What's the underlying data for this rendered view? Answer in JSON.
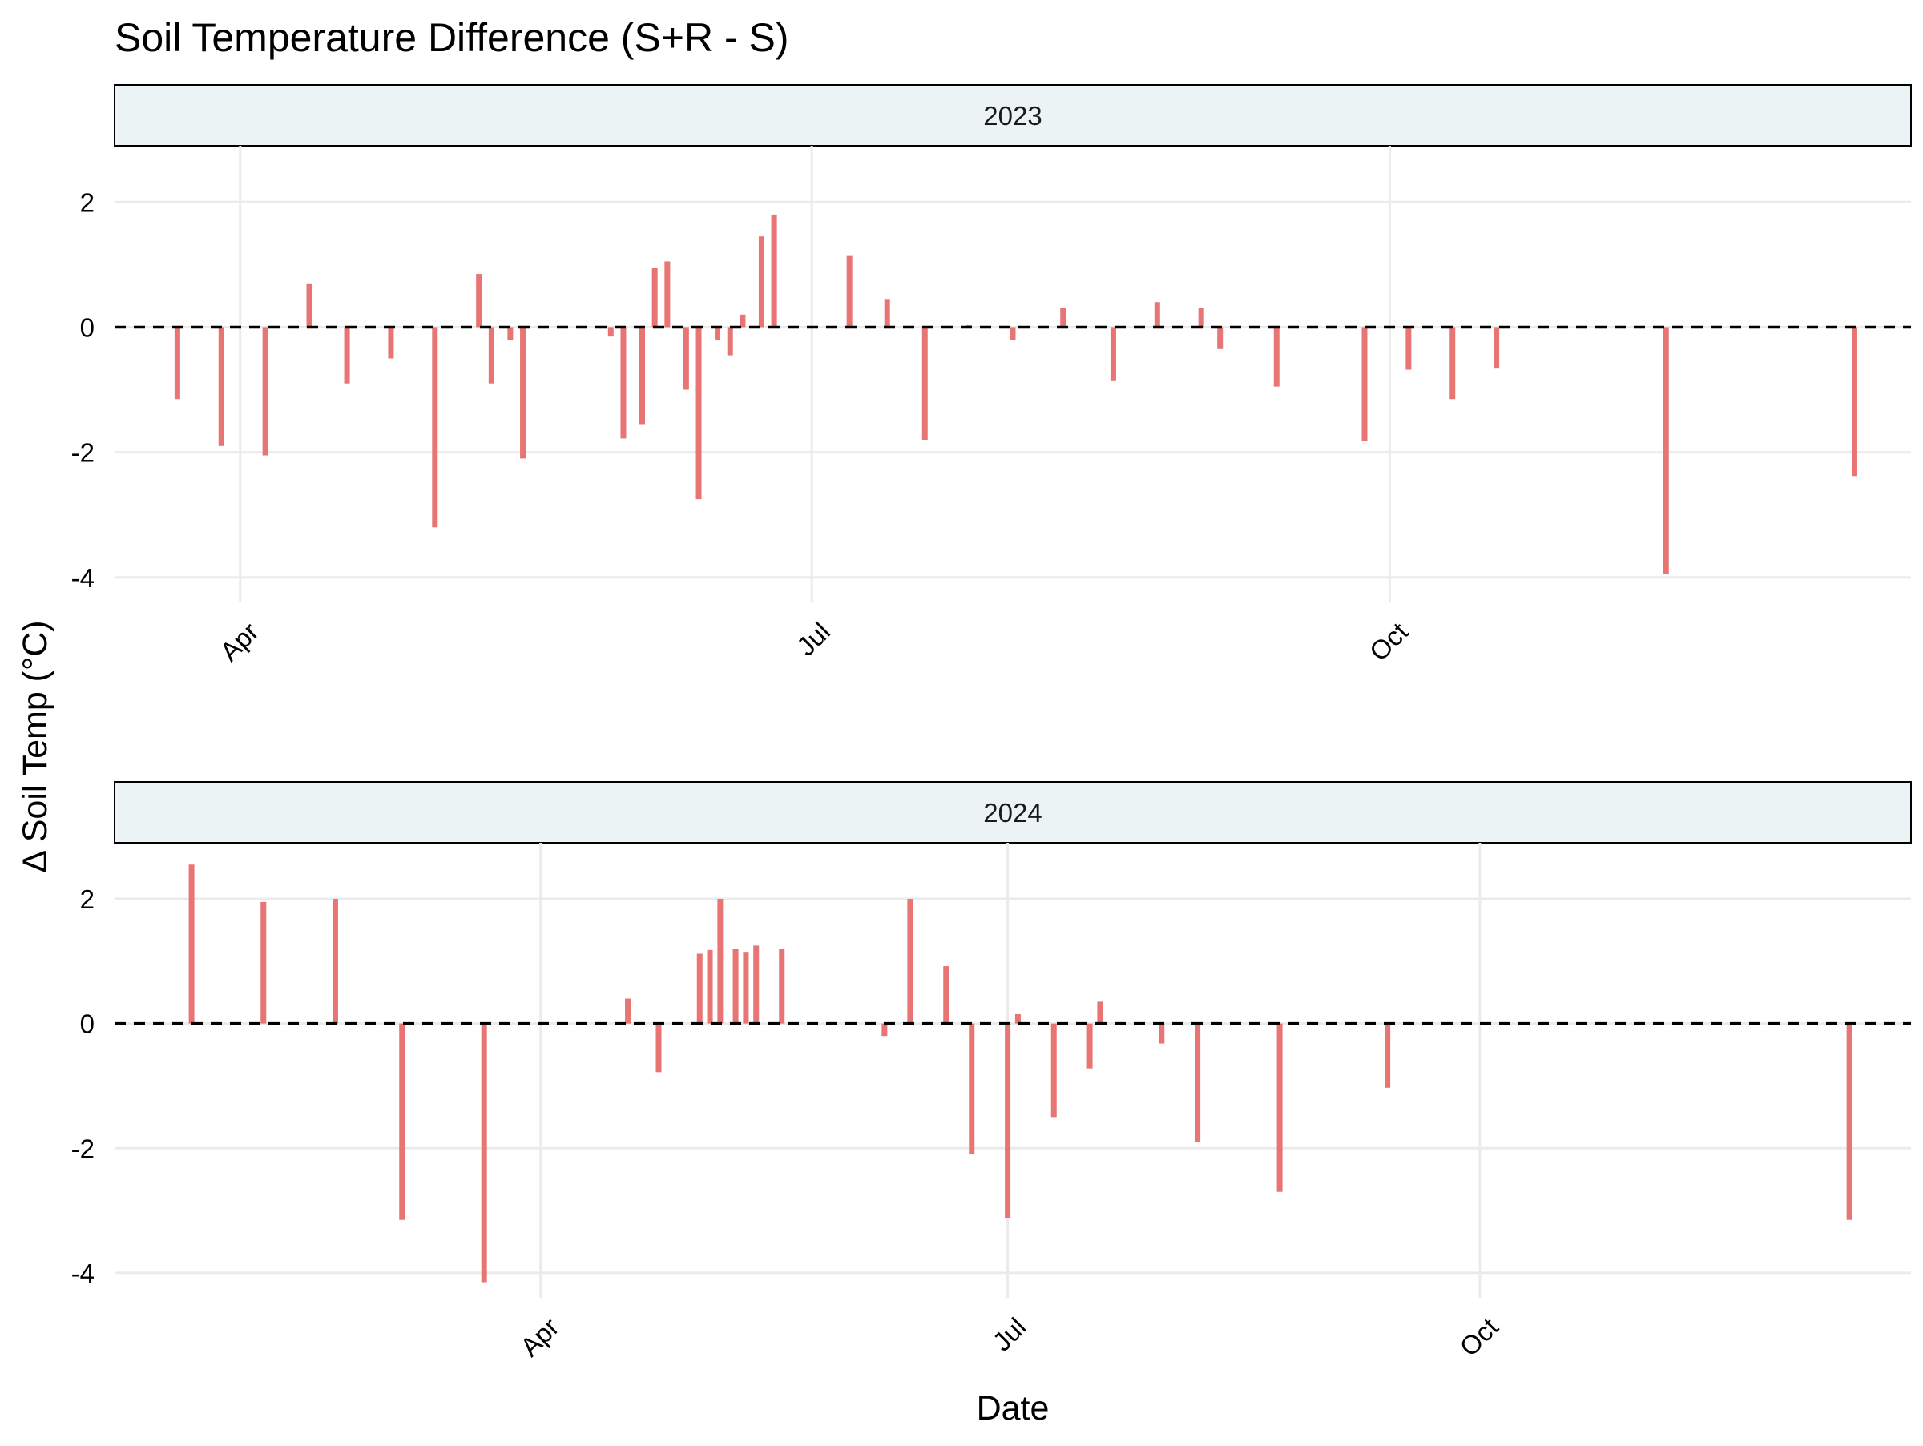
{
  "chart_data": {
    "type": "bar",
    "title": "Soil Temperature Difference (S+R - S)",
    "xlabel": "Date",
    "ylabel": "Δ Soil Temp (°C)",
    "ylim": [
      -4.4,
      2.9
    ],
    "y_ticks": [
      -4,
      -2,
      0,
      2
    ],
    "grid": true,
    "reference_line": 0,
    "bar_color": "#E87474",
    "strip_fill": "#ECF3F5",
    "panels": [
      {
        "strip_label": "2023",
        "xlim": [
          "2023-03-12",
          "2023-12-23"
        ],
        "x_ticks": [
          {
            "date": "2023-04-01",
            "label": "Apr"
          },
          {
            "date": "2023-07-01",
            "label": "Jul"
          },
          {
            "date": "2023-10-01",
            "label": "Oct"
          }
        ],
        "dates": [
          "2023-03-22",
          "2023-03-29",
          "2023-04-05",
          "2023-04-12",
          "2023-04-18",
          "2023-04-25",
          "2023-05-02",
          "2023-05-09",
          "2023-05-11",
          "2023-05-14",
          "2023-05-16",
          "2023-05-30",
          "2023-06-01",
          "2023-06-04",
          "2023-06-06",
          "2023-06-08",
          "2023-06-11",
          "2023-06-13",
          "2023-06-16",
          "2023-06-18",
          "2023-06-20",
          "2023-06-23",
          "2023-06-25",
          "2023-07-07",
          "2023-07-13",
          "2023-07-19",
          "2023-07-26",
          "2023-08-02",
          "2023-08-10",
          "2023-08-18",
          "2023-08-25",
          "2023-09-01",
          "2023-09-04",
          "2023-09-13",
          "2023-09-27",
          "2023-10-04",
          "2023-10-11",
          "2023-10-18",
          "2023-11-14",
          "2023-12-14"
        ],
        "values": [
          -1.15,
          -1.9,
          -2.05,
          0.7,
          -0.9,
          -0.5,
          -3.2,
          0.85,
          -0.9,
          -0.2,
          -2.1,
          -0.15,
          -1.78,
          -1.55,
          0.95,
          1.05,
          -1.0,
          -2.75,
          -0.2,
          -0.45,
          0.2,
          1.45,
          1.8,
          1.15,
          0.45,
          -1.8,
          0.03,
          -0.2,
          0.3,
          -0.85,
          0.4,
          0.3,
          -0.35,
          -0.95,
          -1.82,
          -0.68,
          -1.15,
          -0.65,
          -3.95,
          -2.38
        ]
      },
      {
        "strip_label": "2024",
        "xlim": [
          "2024-01-09",
          "2024-12-24"
        ],
        "x_ticks": [
          {
            "date": "2024-04-01",
            "label": "Apr"
          },
          {
            "date": "2024-07-01",
            "label": "Jul"
          },
          {
            "date": "2024-10-01",
            "label": "Oct"
          }
        ],
        "dates": [
          "2024-01-24",
          "2024-02-07",
          "2024-02-21",
          "2024-03-05",
          "2024-03-21",
          "2024-04-18",
          "2024-04-24",
          "2024-05-02",
          "2024-05-04",
          "2024-05-06",
          "2024-05-09",
          "2024-05-11",
          "2024-05-13",
          "2024-05-18",
          "2024-06-07",
          "2024-06-12",
          "2024-06-19",
          "2024-06-24",
          "2024-07-01",
          "2024-07-03",
          "2024-07-10",
          "2024-07-17",
          "2024-07-19",
          "2024-07-31",
          "2024-08-07",
          "2024-08-23",
          "2024-08-30",
          "2024-09-13",
          "2024-12-12"
        ],
        "values": [
          2.55,
          1.95,
          2.0,
          -3.15,
          -4.15,
          0.4,
          -0.78,
          1.12,
          1.18,
          2.0,
          1.2,
          1.15,
          1.25,
          1.2,
          -0.2,
          2.0,
          0.92,
          -2.1,
          -3.12,
          0.15,
          -1.5,
          -0.72,
          0.35,
          -0.32,
          -1.9,
          -2.7,
          0.02,
          -1.03,
          -3.15
        ]
      }
    ]
  }
}
